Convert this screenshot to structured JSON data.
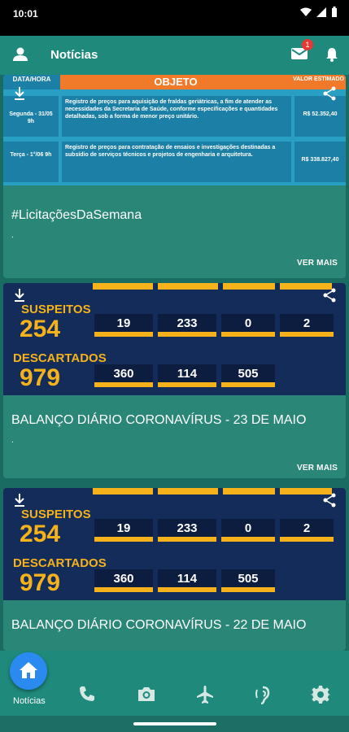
{
  "status": {
    "time": "10:01"
  },
  "app_bar": {
    "title": "Notícias",
    "mail_badge": "1"
  },
  "licitacoes_image": {
    "headers": {
      "date": "DATA/HORA",
      "object": "OBJETO",
      "value": "VALOR ESTIMADO"
    },
    "rows": [
      {
        "date": "Segunda - 31/05 9h",
        "object": "Registro de preços para aquisição de fraldas geriátricas, a fim de atender as necessidades da Secretaria de Saúde, conforme especificações e quantidades detalhadas, sob a forma de menor preço unitário.",
        "value": "R$ 52.352,40"
      },
      {
        "date": "Terça - 1°/06 9h",
        "object": "Registro de preços para contratação de ensaios e investigações destinadas a subsídio de serviços técnicos e projetos de engenharia e arquitetura.",
        "value": "R$ 338.827,40"
      }
    ]
  },
  "covid_image": {
    "suspects_label": "SUSPEITOS",
    "suspects_value": "254",
    "suspects_boxes": [
      "19",
      "233",
      "0",
      "2"
    ],
    "discarded_label": "DESCARTADOS",
    "discarded_value": "979",
    "discarded_boxes": [
      "360",
      "114",
      "505"
    ]
  },
  "cards": [
    {
      "title": "#LicitaçõesDaSemana",
      "dot": ".",
      "more": "VER MAIS"
    },
    {
      "title": "BALANÇO DIÁRIO CORONAVÍRUS - 23 DE MAIO",
      "dot": ".",
      "more": "VER MAIS"
    },
    {
      "title": "BALANÇO DIÁRIO CORONAVÍRUS - 22 DE MAIO"
    }
  ],
  "bottom_nav": {
    "home_label": "Notícias"
  },
  "colors": {
    "primary": "#1f8a7c",
    "card": "#2a8677",
    "accent": "#f5b21b",
    "home": "#2a8af0"
  },
  "icons": [
    "user-icon",
    "mail-icon",
    "bell-icon",
    "home-icon",
    "phone-icon",
    "camera-icon",
    "airplane-icon",
    "ear-icon",
    "gear-icon",
    "download-icon",
    "share-icon"
  ]
}
